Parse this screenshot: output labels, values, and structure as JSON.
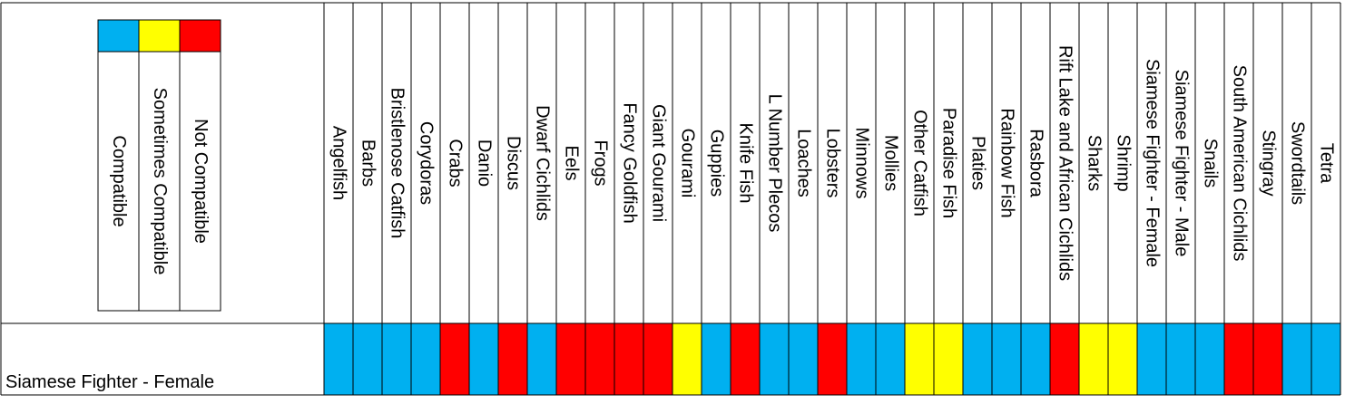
{
  "legend": [
    {
      "label": "Not Compatible",
      "color": "#ff0000"
    },
    {
      "label": "Sometimes Compatible",
      "color": "#ffff00"
    },
    {
      "label": "Compatible",
      "color": "#00b0f0"
    }
  ],
  "columns": [
    "Angelfish",
    "Barbs",
    "Bristlenose Catfish",
    "Corydoras",
    "Crabs",
    "Danio",
    "Discus",
    "Dwarf Cichlids",
    "Eels",
    "Frogs",
    "Fancy Goldfish",
    "Giant Gourami",
    "Gourami",
    "Guppies",
    "Knife Fish",
    "L Number Plecos",
    "Loaches",
    "Lobsters",
    "Minnows",
    "Mollies",
    "Other Catfish",
    "Paradise Fish",
    "Platies",
    "Rainbow Fish",
    "Rasbora",
    "Rift Lake and African Cichlids",
    "Sharks",
    "Shrimp",
    "Siamese Fighter - Female",
    "Siamese Fighter - Male",
    "Snails",
    "South American Cichlids",
    "Stingray",
    "Swordtails",
    "Tetra"
  ],
  "rows": [
    {
      "label": "Siamese Fighter - Female",
      "cells": [
        2,
        2,
        2,
        2,
        0,
        2,
        0,
        2,
        0,
        0,
        0,
        0,
        1,
        2,
        0,
        2,
        2,
        0,
        2,
        2,
        1,
        1,
        2,
        2,
        2,
        0,
        1,
        1,
        2,
        2,
        2,
        0,
        0,
        2,
        2
      ]
    }
  ]
}
